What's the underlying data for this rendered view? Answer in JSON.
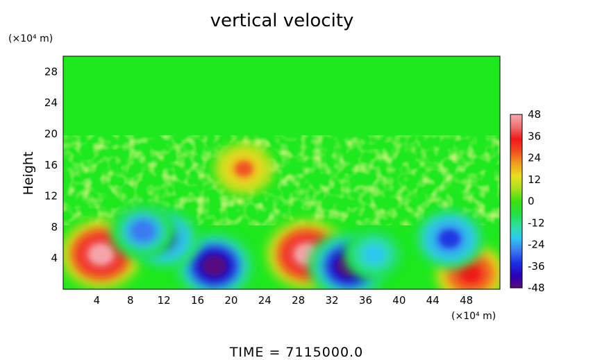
{
  "chart_data": {
    "type": "heatmap",
    "title": "vertical velocity",
    "ylabel": "Height",
    "xlabel": "",
    "y_unit": "(×10⁴ m)",
    "x_unit": "(×10⁴ m)",
    "footer": "TIME  =  7115000.0",
    "xlim": [
      0,
      52
    ],
    "ylim": [
      0,
      30
    ],
    "x_ticks": [
      4,
      8,
      12,
      16,
      20,
      24,
      28,
      32,
      36,
      40,
      44,
      48
    ],
    "y_ticks": [
      4,
      8,
      12,
      16,
      20,
      24,
      28
    ],
    "colorbar": {
      "min": -48,
      "max": 48,
      "ticks": [
        48,
        36,
        24,
        12,
        0,
        -12,
        -24,
        -36,
        -48
      ],
      "colors": [
        "#5a0a7a",
        "#2a00b8",
        "#1a30e0",
        "#3a7af0",
        "#2ec8ee",
        "#2ee0a0",
        "#22e040",
        "#3ce010",
        "#a8e020",
        "#e8e020",
        "#f0a020",
        "#f05020",
        "#f01818",
        "#f07070",
        "#f8a8b0"
      ]
    },
    "values": {
      "background": 0,
      "features": [
        {
          "kind": "updraft",
          "x": 4.5,
          "y": 4.5,
          "peak": 48
        },
        {
          "kind": "updraft",
          "x": 29,
          "y": 4.5,
          "peak": 48
        },
        {
          "kind": "updraft",
          "x": 48.5,
          "y": 2,
          "peak": 36
        },
        {
          "kind": "downdraft",
          "x": 18,
          "y": 3,
          "peak": -48
        },
        {
          "kind": "downdraft",
          "x": 34,
          "y": 3,
          "peak": -48
        },
        {
          "kind": "downdraft",
          "x": 12,
          "y": 6.5,
          "peak": -36
        },
        {
          "kind": "downdraft",
          "x": 9.5,
          "y": 7.5,
          "peak": -30
        },
        {
          "kind": "downdraft",
          "x": 46,
          "y": 6.5,
          "peak": -36
        },
        {
          "kind": "downdraft",
          "x": 37,
          "y": 4.5,
          "peak": -24
        },
        {
          "kind": "updraft",
          "x": 21.5,
          "y": 15.5,
          "peak": 24
        }
      ]
    }
  }
}
